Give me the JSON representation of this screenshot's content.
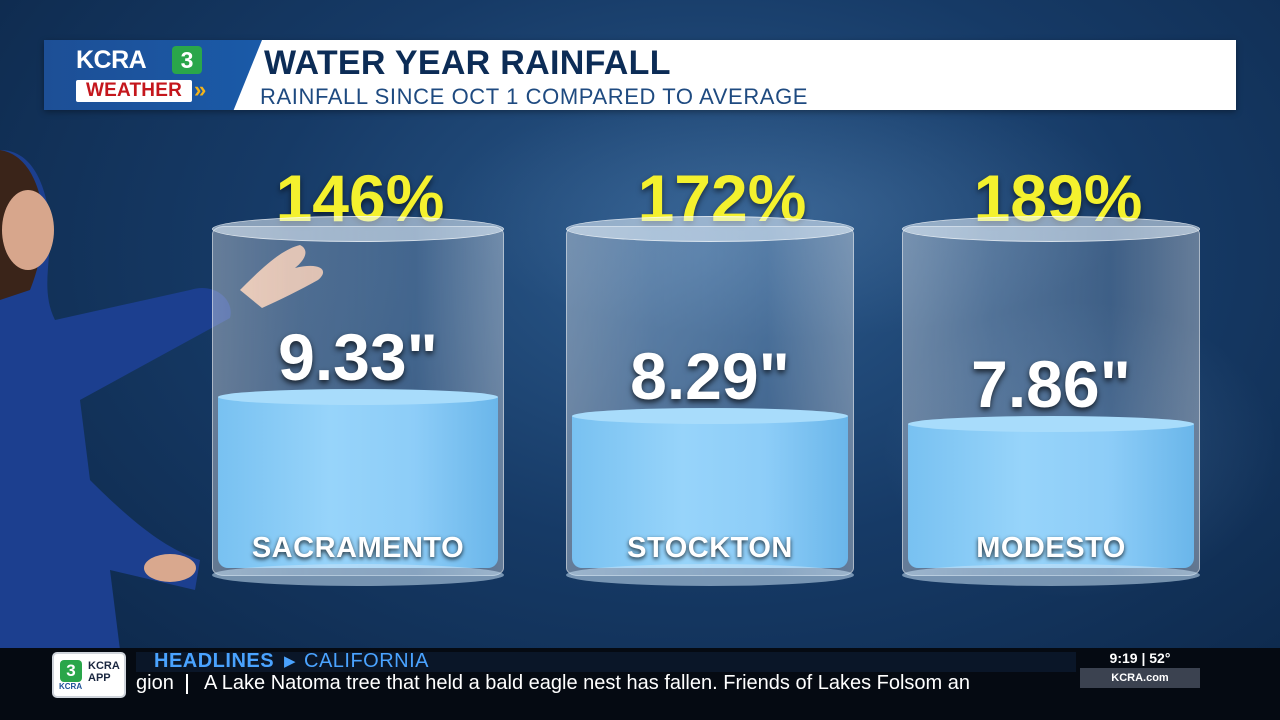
{
  "header": {
    "logo_kcra": "KCRA",
    "logo_three": "3",
    "logo_weather": "WEATHER",
    "logo_chevrons": "»",
    "title": "WATER YEAR RAINFALL",
    "subtitle": "RAINFALL SINCE OCT 1 COMPARED TO AVERAGE"
  },
  "chart_data": {
    "type": "bar",
    "title": "WATER YEAR RAINFALL",
    "subtitle": "RAINFALL SINCE OCT 1 COMPARED TO AVERAGE",
    "categories": [
      "SACRAMENTO",
      "STOCKTON",
      "MODESTO"
    ],
    "percent_labels": [
      "146%",
      "172%",
      "189%"
    ],
    "rainfall_labels": [
      "9.33\"",
      "8.29\"",
      "7.86\""
    ],
    "series": [
      {
        "name": "",
        "values": [
          9.33,
          8.29,
          7.86
        ]
      }
    ],
    "percent_of_average": [
      146,
      172,
      189
    ],
    "colors": {
      "percent": "#f4f12e",
      "water": "#8dcdf8",
      "text": "#ffffff"
    }
  },
  "ticker": {
    "app_three": "3",
    "app_kcra": "KCRA",
    "app_line1": "KCRA",
    "app_line2": "APP",
    "headlines_label": "HEADLINES",
    "headlines_arrow": "▶",
    "headlines_category": "CALIFORNIA",
    "crawl_prefix": "gion",
    "crawl_headline": "A Lake Natoma tree that held a bald eagle nest has fallen. Friends of Lakes Folsom an",
    "time_temp": "9:19 | 52°",
    "site": "KCRA.com"
  }
}
